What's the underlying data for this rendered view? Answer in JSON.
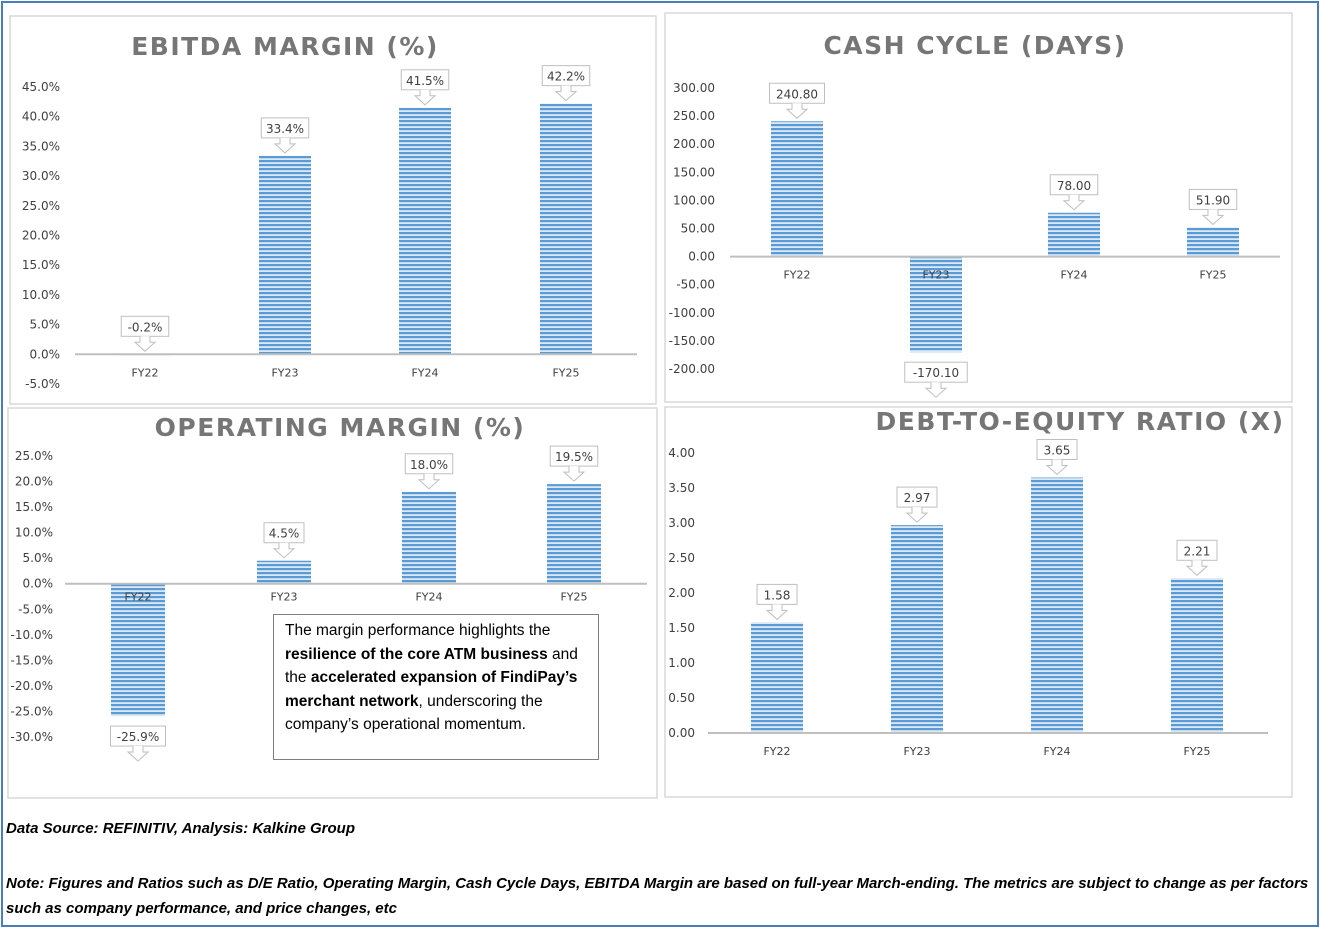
{
  "chart_data": [
    {
      "id": "ebitda",
      "type": "bar",
      "title": "EBITDA MARGIN (%)",
      "categories": [
        "FY22",
        "FY23",
        "FY24",
        "FY25"
      ],
      "values": [
        -0.2,
        33.4,
        41.5,
        42.2
      ],
      "value_labels": [
        "-0.2%",
        "33.4%",
        "41.5%",
        "42.2%"
      ],
      "ylim": [
        -5,
        45
      ],
      "yticks": [
        -5,
        0,
        5,
        10,
        15,
        20,
        25,
        30,
        35,
        40,
        45
      ],
      "ytick_labels": [
        "-5.0%",
        "0.0%",
        "5.0%",
        "10.0%",
        "15.0%",
        "20.0%",
        "25.0%",
        "30.0%",
        "35.0%",
        "40.0%",
        "45.0%"
      ],
      "xlabel": "",
      "ylabel": "",
      "grid": false
    },
    {
      "id": "cash",
      "type": "bar",
      "title": "CASH CYCLE (DAYS)",
      "categories": [
        "FY22",
        "FY23",
        "FY24",
        "FY25"
      ],
      "values": [
        240.8,
        -170.1,
        78.0,
        51.9
      ],
      "value_labels": [
        "240.80",
        "-170.10",
        "78.00",
        "51.90"
      ],
      "ylim": [
        -200,
        300
      ],
      "yticks": [
        -200,
        -150,
        -100,
        -50,
        0,
        50,
        100,
        150,
        200,
        250,
        300
      ],
      "ytick_labels": [
        "-200.00",
        "-150.00",
        "-100.00",
        "-50.00",
        "0.00",
        "50.00",
        "100.00",
        "150.00",
        "200.00",
        "250.00",
        "300.00"
      ],
      "xlabel": "",
      "ylabel": "",
      "grid": false
    },
    {
      "id": "opm",
      "type": "bar",
      "title": "OPERATING MARGIN (%)",
      "categories": [
        "FY22",
        "FY23",
        "FY24",
        "FY25"
      ],
      "values": [
        -25.9,
        4.5,
        18.0,
        19.5
      ],
      "value_labels": [
        "-25.9%",
        "4.5%",
        "18.0%",
        "19.5%"
      ],
      "ylim": [
        -30,
        25
      ],
      "yticks": [
        -30,
        -25,
        -20,
        -15,
        -10,
        -5,
        0,
        5,
        10,
        15,
        20,
        25
      ],
      "ytick_labels": [
        "-30.0%",
        "-25.0%",
        "-20.0%",
        "-15.0%",
        "-10.0%",
        "-5.0%",
        "0.0%",
        "5.0%",
        "10.0%",
        "15.0%",
        "20.0%",
        "25.0%"
      ],
      "xlabel": "",
      "ylabel": "",
      "grid": false
    },
    {
      "id": "de",
      "type": "bar",
      "title": "DEBT-TO-EQUITY RATIO (X)",
      "categories": [
        "FY22",
        "FY23",
        "FY24",
        "FY25"
      ],
      "values": [
        1.58,
        2.97,
        3.65,
        2.21
      ],
      "value_labels": [
        "1.58",
        "2.97",
        "3.65",
        "2.21"
      ],
      "ylim": [
        0,
        4
      ],
      "yticks": [
        0,
        0.5,
        1,
        1.5,
        2,
        2.5,
        3,
        3.5,
        4
      ],
      "ytick_labels": [
        "0.00",
        "0.50",
        "1.00",
        "1.50",
        "2.00",
        "2.50",
        "3.00",
        "3.50",
        "4.00"
      ],
      "xlabel": "",
      "ylabel": "",
      "grid": false
    }
  ],
  "colors": {
    "bar": "#5b9bd5",
    "bar_light": "#dbe9f7",
    "frame": "#4a7ebb"
  },
  "note_box": [
    {
      "text": "The margin performance highlights the ",
      "bold": false
    },
    {
      "text": "resilience of the core ATM business",
      "bold": true
    },
    {
      "text": " and the ",
      "bold": false
    },
    {
      "text": "accelerated expansion of FindiPay’s merchant network",
      "bold": true
    },
    {
      "text": ", underscoring the company’s operational momentum.",
      "bold": false
    }
  ],
  "footer": {
    "source": "Data Source: REFINITIV, Analysis: Kalkine Group",
    "note": "Note: Figures and Ratios such as D/E Ratio, Operating Margin, Cash Cycle Days, EBITDA Margin are based on full-year March-ending. The metrics are subject to change as per factors such as company performance, and price changes, etc"
  }
}
